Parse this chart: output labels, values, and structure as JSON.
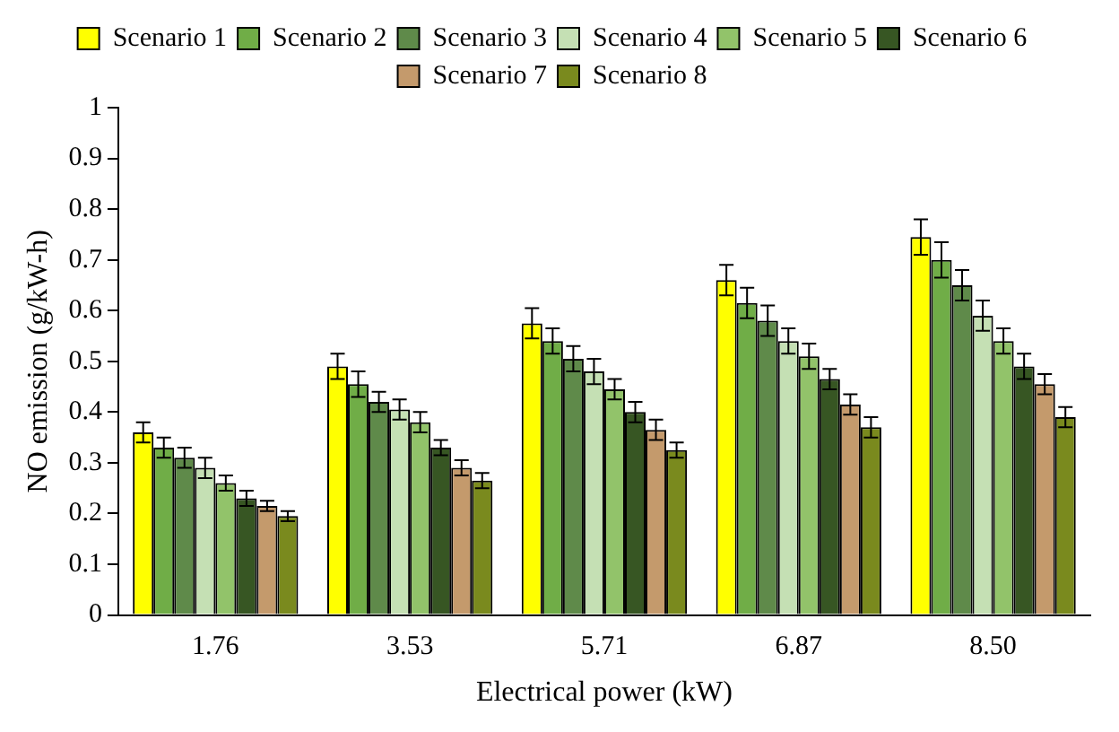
{
  "chart_data": {
    "type": "bar",
    "xlabel": "Electrical power (kW)",
    "ylabel": "NO emission (g/kW-h)",
    "categories": [
      "1.76",
      "3.53",
      "5.71",
      "6.87",
      "8.50"
    ],
    "series": [
      {
        "name": "Scenario 1",
        "color": "#ffff00",
        "values": [
          0.36,
          0.49,
          0.575,
          0.66,
          0.745
        ],
        "errors": [
          0.02,
          0.025,
          0.03,
          0.03,
          0.035
        ]
      },
      {
        "name": "Scenario 2",
        "color": "#70ad47",
        "values": [
          0.33,
          0.455,
          0.54,
          0.615,
          0.7
        ],
        "errors": [
          0.02,
          0.025,
          0.025,
          0.03,
          0.035
        ]
      },
      {
        "name": "Scenario 3",
        "color": "#5f8a4a",
        "values": [
          0.31,
          0.42,
          0.505,
          0.58,
          0.65
        ],
        "errors": [
          0.02,
          0.02,
          0.025,
          0.03,
          0.03
        ]
      },
      {
        "name": "Scenario 4",
        "color": "#c5e0b4",
        "values": [
          0.29,
          0.405,
          0.48,
          0.54,
          0.59
        ],
        "errors": [
          0.02,
          0.02,
          0.025,
          0.025,
          0.03
        ]
      },
      {
        "name": "Scenario 5",
        "color": "#92c36a",
        "values": [
          0.26,
          0.38,
          0.445,
          0.51,
          0.54
        ],
        "errors": [
          0.015,
          0.02,
          0.02,
          0.025,
          0.025
        ]
      },
      {
        "name": "Scenario 6",
        "color": "#375623",
        "values": [
          0.23,
          0.33,
          0.4,
          0.465,
          0.49
        ],
        "errors": [
          0.015,
          0.015,
          0.02,
          0.02,
          0.025
        ]
      },
      {
        "name": "Scenario 7",
        "color": "#c49a6c",
        "values": [
          0.215,
          0.29,
          0.365,
          0.415,
          0.455
        ],
        "errors": [
          0.01,
          0.015,
          0.02,
          0.02,
          0.02
        ]
      },
      {
        "name": "Scenario 8",
        "color": "#7a8a1e",
        "values": [
          0.195,
          0.265,
          0.325,
          0.37,
          0.39
        ],
        "errors": [
          0.01,
          0.015,
          0.015,
          0.02,
          0.02
        ]
      }
    ],
    "ylim": [
      0,
      1
    ],
    "yticks": [
      0,
      0.1,
      0.2,
      0.3,
      0.4,
      0.5,
      0.6,
      0.7,
      0.8,
      0.9,
      1
    ],
    "grid": false,
    "legend": "top"
  }
}
